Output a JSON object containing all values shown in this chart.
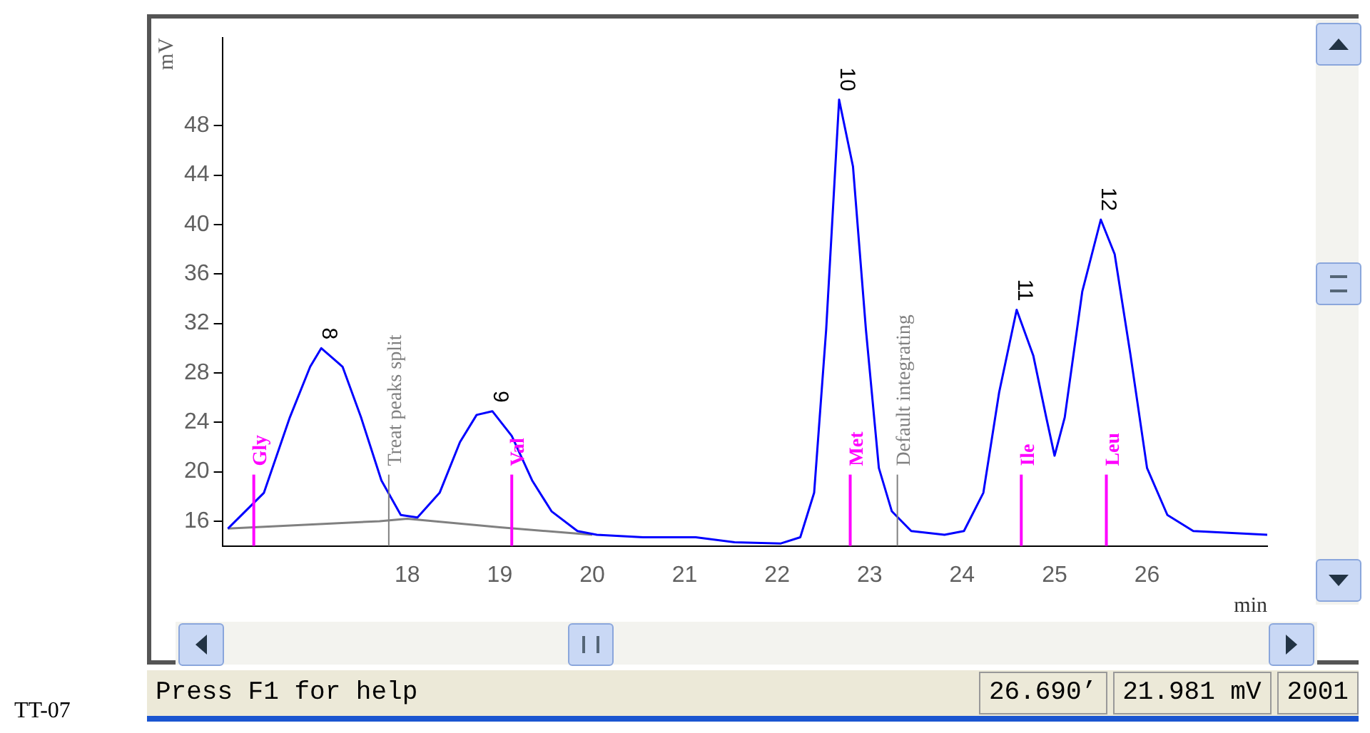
{
  "chart_data": {
    "type": "line",
    "xlabel": "min",
    "ylabel": "mV",
    "xlim": [
      16.0,
      27.3
    ],
    "xticks": [
      18,
      19,
      20,
      21,
      22,
      23,
      24,
      25,
      26
    ],
    "ylim": [
      14,
      55.1
    ],
    "yticks": [
      16,
      20,
      24,
      28,
      32,
      36,
      40,
      44,
      48
    ],
    "grid": false,
    "legend": false,
    "marker": "none",
    "line_style": "solid",
    "series": [
      {
        "color": "#0000ff",
        "x": [
          16.06,
          16.45,
          16.73,
          16.95,
          17.07,
          17.3,
          17.5,
          17.72,
          17.93,
          18.11,
          18.35,
          18.57,
          18.75,
          18.92,
          19.13,
          19.35,
          19.56,
          19.84,
          20.05,
          20.55,
          21.12,
          21.54,
          22.04,
          22.25,
          22.4,
          22.53,
          22.67,
          22.82,
          22.96,
          23.1,
          23.24,
          23.45,
          23.81,
          24.02,
          24.23,
          24.4,
          24.59,
          24.77,
          24.91,
          25.0,
          25.11,
          25.3,
          25.5,
          25.65,
          25.82,
          26.0,
          26.22,
          26.5,
          27.3
        ],
        "values": [
          15.4,
          18.3,
          24.4,
          28.5,
          30.0,
          28.5,
          24.4,
          19.3,
          16.5,
          16.3,
          18.3,
          22.4,
          24.6,
          24.9,
          22.9,
          19.3,
          16.8,
          15.2,
          14.9,
          14.7,
          14.7,
          14.3,
          14.2,
          14.7,
          18.3,
          31.5,
          50.1,
          44.7,
          31.5,
          20.3,
          16.8,
          15.2,
          14.9,
          15.2,
          18.3,
          26.4,
          33.1,
          29.4,
          24.4,
          21.3,
          24.4,
          34.6,
          40.4,
          37.6,
          29.5,
          20.3,
          16.5,
          15.2,
          14.9
        ]
      },
      {
        "color": "#808080",
        "x": [
          16.06,
          17.7,
          18.0,
          19.0,
          20.0
        ],
        "values": [
          15.4,
          16.0,
          16.2,
          15.5,
          14.9
        ]
      }
    ],
    "annotations": [
      {
        "text": "8",
        "x": 17.07,
        "y": 30.0
      },
      {
        "text": "9",
        "x": 18.92,
        "y": 24.9
      },
      {
        "text": "10",
        "x": 22.67,
        "y": 50.1
      },
      {
        "text": "11",
        "x": 24.59,
        "y": 33.1
      },
      {
        "text": "12",
        "x": 25.5,
        "y": 40.4
      },
      "Press F1 for help",
      "26.690’",
      "21.981 mV",
      "2001",
      "TT-07"
    ],
    "ref_lines": [
      {
        "axis": "x",
        "value": 16.34,
        "label": "Gly",
        "color": "#ff00ff"
      },
      {
        "axis": "x",
        "value": 19.13,
        "label": "Val",
        "color": "#ff00ff"
      },
      {
        "axis": "x",
        "value": 22.79,
        "label": "Met",
        "color": "#ff00ff"
      },
      {
        "axis": "x",
        "value": 24.64,
        "label": "Ile",
        "color": "#ff00ff"
      },
      {
        "axis": "x",
        "value": 25.56,
        "label": "Leu",
        "color": "#ff00ff"
      },
      {
        "axis": "x",
        "value": 17.8,
        "label": "Treat peaks split",
        "color": "#808080"
      },
      {
        "axis": "x",
        "value": 23.3,
        "label": "Default integrating",
        "color": "#808080"
      }
    ]
  }
}
